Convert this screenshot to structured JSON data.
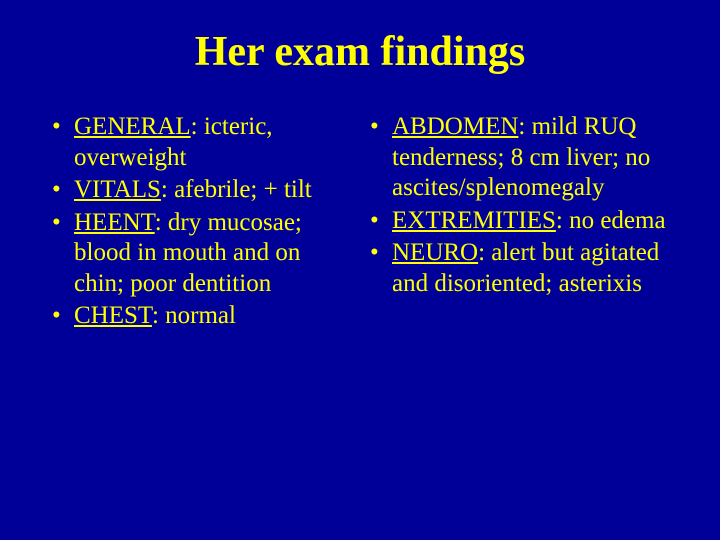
{
  "slide": {
    "title": "Her exam findings",
    "background_color": "#000099",
    "text_color": "#ffff00",
    "title_fontsize": 42,
    "body_fontsize": 25,
    "font_family": "Times New Roman",
    "bullet_glyph": "•",
    "left_items": [
      {
        "label": "GENERAL",
        "detail": ": icteric, overweight"
      },
      {
        "label": "VITALS",
        "detail": ": afebrile; + tilt"
      },
      {
        "label": "HEENT",
        "detail": ": dry mucosae; blood in mouth and on chin; poor dentition"
      },
      {
        "label": "CHEST",
        "detail": ": normal"
      }
    ],
    "right_items": [
      {
        "label": "ABDOMEN",
        "detail": ": mild RUQ tenderness; 8 cm liver; no ascites/splenomegaly"
      },
      {
        "label": "EXTREMITIES",
        "detail": ": no edema"
      },
      {
        "label": "NEURO",
        "detail": ": alert but agitated and disoriented; asterixis"
      }
    ]
  }
}
